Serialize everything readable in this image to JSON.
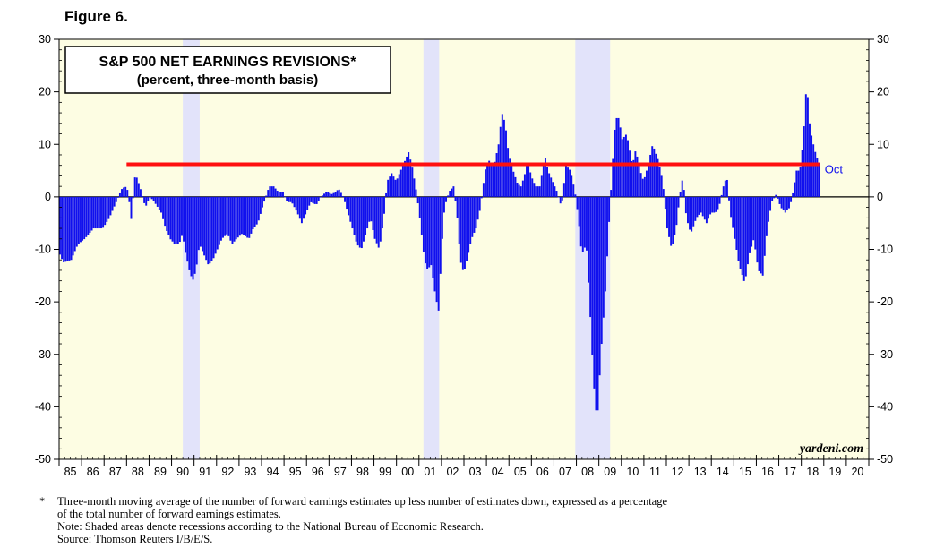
{
  "figure_label": "Figure 6.",
  "watermark": "yardeni.com",
  "footnotes": {
    "asterisk": "*",
    "line1": "Three-month moving average of the number of forward earnings estimates up less number of estimates down, expressed as a percentage",
    "line2": "of the total number of forward earnings estimates.",
    "note": "Note: Shaded areas denote recessions according to the National Bureau of Economic Research.",
    "source": "Source: Thomson Reuters I/B/E/S."
  },
  "colors": {
    "plot_background": "#fdfde3",
    "recession_shade": "#e2e3fa",
    "bars": "#1010ee",
    "reference_line": "#ff1010",
    "axis": "#000000"
  },
  "chart_data": {
    "type": "bar",
    "title": "S&P 500 NET EARNINGS REVISIONS*",
    "subtitle": "(percent, three-month basis)",
    "xlabel": "",
    "ylabel": "",
    "x_range": [
      1985,
      2021
    ],
    "ylim": [
      -50,
      30
    ],
    "yticks": [
      -50,
      -40,
      -30,
      -20,
      -10,
      0,
      10,
      20,
      30
    ],
    "year_labels": [
      "85",
      "86",
      "87",
      "88",
      "89",
      "90",
      "91",
      "92",
      "93",
      "94",
      "95",
      "96",
      "97",
      "98",
      "99",
      "00",
      "01",
      "02",
      "03",
      "04",
      "05",
      "06",
      "07",
      "08",
      "09",
      "10",
      "11",
      "12",
      "13",
      "14",
      "15",
      "16",
      "17",
      "18",
      "19",
      "20"
    ],
    "recessions": [
      [
        1990.5,
        1991.25
      ],
      [
        2001.2,
        2001.9
      ],
      [
        2007.95,
        2009.5
      ]
    ],
    "reference_line": {
      "value": 6.2,
      "from": 1988.0,
      "to": 2018.8
    },
    "last_label": "Oct",
    "series": [
      {
        "frequency": "monthly",
        "start": 1985.0,
        "anchors": [
          [
            1985.0,
            -11
          ],
          [
            1985.15,
            -12.5
          ],
          [
            1985.5,
            -12
          ],
          [
            1985.8,
            -9
          ],
          [
            1986.1,
            -8
          ],
          [
            1986.5,
            -6
          ],
          [
            1986.9,
            -6
          ],
          [
            1987.2,
            -4
          ],
          [
            1987.5,
            -1
          ],
          [
            1987.75,
            1.5
          ],
          [
            1987.9,
            2
          ],
          [
            1988.05,
            1
          ],
          [
            1988.15,
            -5
          ],
          [
            1988.35,
            4.5
          ],
          [
            1988.55,
            2
          ],
          [
            1988.8,
            -2
          ],
          [
            1989.0,
            0
          ],
          [
            1989.2,
            -1
          ],
          [
            1989.5,
            -3
          ],
          [
            1989.7,
            -6
          ],
          [
            1989.9,
            -8
          ],
          [
            1990.1,
            -9
          ],
          [
            1990.3,
            -9
          ],
          [
            1990.45,
            -7
          ],
          [
            1990.55,
            -10
          ],
          [
            1990.75,
            -14
          ],
          [
            1990.9,
            -16
          ],
          [
            1991.05,
            -14
          ],
          [
            1991.2,
            -9
          ],
          [
            1991.4,
            -11
          ],
          [
            1991.6,
            -13
          ],
          [
            1991.8,
            -12
          ],
          [
            1992.0,
            -10
          ],
          [
            1992.2,
            -8
          ],
          [
            1992.45,
            -7
          ],
          [
            1992.65,
            -9
          ],
          [
            1992.85,
            -8
          ],
          [
            1993.1,
            -7
          ],
          [
            1993.4,
            -8
          ],
          [
            1993.6,
            -6
          ],
          [
            1993.8,
            -5
          ],
          [
            1994.0,
            -2
          ],
          [
            1994.3,
            2
          ],
          [
            1994.5,
            2
          ],
          [
            1994.7,
            1
          ],
          [
            1994.9,
            1
          ],
          [
            1995.1,
            -1
          ],
          [
            1995.3,
            -1
          ],
          [
            1995.55,
            -3
          ],
          [
            1995.75,
            -5
          ],
          [
            1995.95,
            -3
          ],
          [
            1996.15,
            -1
          ],
          [
            1996.4,
            -1.5
          ],
          [
            1996.6,
            0
          ],
          [
            1996.85,
            1
          ],
          [
            1997.1,
            0.5
          ],
          [
            1997.4,
            1.5
          ],
          [
            1997.6,
            0
          ],
          [
            1997.8,
            -3
          ],
          [
            1998.0,
            -6
          ],
          [
            1998.2,
            -9
          ],
          [
            1998.4,
            -10
          ],
          [
            1998.6,
            -7
          ],
          [
            1998.8,
            -4
          ],
          [
            1999.0,
            -8
          ],
          [
            1999.2,
            -10
          ],
          [
            1999.4,
            -4
          ],
          [
            1999.55,
            3
          ],
          [
            1999.75,
            4.5
          ],
          [
            1999.95,
            3
          ],
          [
            2000.15,
            5
          ],
          [
            2000.35,
            7
          ],
          [
            2000.5,
            8.5
          ],
          [
            2000.65,
            6
          ],
          [
            2000.85,
            1
          ],
          [
            2001.0,
            -4
          ],
          [
            2001.15,
            -10
          ],
          [
            2001.3,
            -14
          ],
          [
            2001.5,
            -13
          ],
          [
            2001.7,
            -19
          ],
          [
            2001.85,
            -22
          ],
          [
            2001.95,
            -11
          ],
          [
            2002.1,
            -2
          ],
          [
            2002.3,
            1
          ],
          [
            2002.5,
            2
          ],
          [
            2002.65,
            -3
          ],
          [
            2002.8,
            -12
          ],
          [
            2002.95,
            -14.5
          ],
          [
            2003.1,
            -12
          ],
          [
            2003.3,
            -8
          ],
          [
            2003.5,
            -6
          ],
          [
            2003.7,
            -2
          ],
          [
            2003.9,
            5
          ],
          [
            2004.05,
            7
          ],
          [
            2004.3,
            6
          ],
          [
            2004.5,
            10
          ],
          [
            2004.65,
            16
          ],
          [
            2004.8,
            14
          ],
          [
            2004.95,
            8
          ],
          [
            2005.15,
            5
          ],
          [
            2005.35,
            2.5
          ],
          [
            2005.5,
            2
          ],
          [
            2005.65,
            4
          ],
          [
            2005.8,
            7
          ],
          [
            2005.95,
            4
          ],
          [
            2006.15,
            2
          ],
          [
            2006.35,
            2
          ],
          [
            2006.55,
            8
          ],
          [
            2006.7,
            5
          ],
          [
            2006.9,
            3
          ],
          [
            2007.1,
            1
          ],
          [
            2007.3,
            -2
          ],
          [
            2007.5,
            6
          ],
          [
            2007.7,
            5
          ],
          [
            2007.9,
            1
          ],
          [
            2008.05,
            -4
          ],
          [
            2008.2,
            -11
          ],
          [
            2008.4,
            -9
          ],
          [
            2008.55,
            -20
          ],
          [
            2008.7,
            -33
          ],
          [
            2008.8,
            -40
          ],
          [
            2008.9,
            -42
          ],
          [
            2009.05,
            -30
          ],
          [
            2009.25,
            -18
          ],
          [
            2009.4,
            -6
          ],
          [
            2009.55,
            5
          ],
          [
            2009.7,
            15
          ],
          [
            2009.85,
            15
          ],
          [
            2010.0,
            11
          ],
          [
            2010.2,
            12
          ],
          [
            2010.45,
            6
          ],
          [
            2010.6,
            9
          ],
          [
            2010.8,
            5
          ],
          [
            2010.95,
            3
          ],
          [
            2011.15,
            6
          ],
          [
            2011.35,
            10
          ],
          [
            2011.6,
            7
          ],
          [
            2011.8,
            3
          ],
          [
            2012.0,
            -6
          ],
          [
            2012.2,
            -10
          ],
          [
            2012.4,
            -6
          ],
          [
            2012.55,
            0
          ],
          [
            2012.7,
            4
          ],
          [
            2012.85,
            -4
          ],
          [
            2013.05,
            -7
          ],
          [
            2013.3,
            -4
          ],
          [
            2013.5,
            -3
          ],
          [
            2013.75,
            -5
          ],
          [
            2013.95,
            -3
          ],
          [
            2014.15,
            -3
          ],
          [
            2014.3,
            -2
          ],
          [
            2014.5,
            2
          ],
          [
            2014.65,
            4
          ],
          [
            2014.8,
            -3
          ],
          [
            2015.0,
            -8
          ],
          [
            2015.2,
            -13
          ],
          [
            2015.45,
            -16.5
          ],
          [
            2015.65,
            -11
          ],
          [
            2015.85,
            -8
          ],
          [
            2016.05,
            -14
          ],
          [
            2016.25,
            -15
          ],
          [
            2016.45,
            -6
          ],
          [
            2016.65,
            -1
          ],
          [
            2016.85,
            0.5
          ],
          [
            2017.05,
            -2
          ],
          [
            2017.25,
            -3
          ],
          [
            2017.45,
            -2
          ],
          [
            2017.6,
            1
          ],
          [
            2017.75,
            5
          ],
          [
            2017.9,
            5
          ],
          [
            2018.05,
            11
          ],
          [
            2018.2,
            22
          ],
          [
            2018.35,
            13
          ],
          [
            2018.55,
            9
          ],
          [
            2018.7,
            7
          ],
          [
            2018.8,
            6
          ]
        ]
      }
    ]
  }
}
